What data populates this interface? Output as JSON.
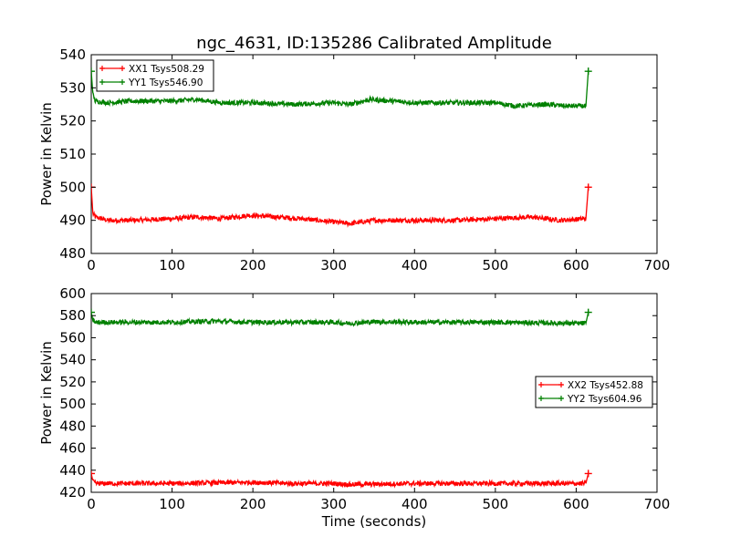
{
  "title": "ngc_4631, ID:135286 Calibrated Amplitude",
  "chart_data": [
    {
      "type": "line",
      "ylabel": "Power in Kelvin",
      "xlabel": "",
      "xlim": [
        0,
        700
      ],
      "ylim": [
        480,
        540
      ],
      "xticks": [
        "0",
        "100",
        "200",
        "300",
        "400",
        "500",
        "600",
        "700"
      ],
      "yticks": [
        "480",
        "490",
        "500",
        "510",
        "520",
        "530",
        "540"
      ],
      "legend_position": "upper-left",
      "series": [
        {
          "name": "XX1 Tsys508.29",
          "color": "#ff0000",
          "x": [
            0,
            2,
            5,
            20,
            50,
            100,
            130,
            160,
            195,
            230,
            260,
            300,
            320,
            350,
            400,
            450,
            500,
            545,
            580,
            612,
            615
          ],
          "y": [
            500,
            492,
            491,
            490,
            490,
            490.5,
            491,
            490.5,
            491.5,
            491,
            490.5,
            489.5,
            489,
            490,
            490,
            490,
            490.5,
            491,
            490,
            490.5,
            500
          ]
        },
        {
          "name": "YY1 Tsys546.90",
          "color": "#008000",
          "x": [
            0,
            2,
            5,
            20,
            50,
            100,
            130,
            160,
            200,
            250,
            300,
            320,
            345,
            400,
            450,
            500,
            525,
            560,
            590,
            612,
            615
          ],
          "y": [
            535,
            528,
            526,
            525.5,
            526,
            526,
            526.5,
            525.5,
            525.5,
            525,
            525.5,
            525,
            526.5,
            525.5,
            525.5,
            525.5,
            524.5,
            525,
            524.5,
            524.5,
            535
          ]
        }
      ]
    },
    {
      "type": "line",
      "ylabel": "Power in Kelvin",
      "xlabel": "Time (seconds)",
      "xlim": [
        0,
        700
      ],
      "ylim": [
        420,
        600
      ],
      "xticks": [
        "0",
        "100",
        "200",
        "300",
        "400",
        "500",
        "600",
        "700"
      ],
      "yticks": [
        "420",
        "440",
        "460",
        "480",
        "500",
        "520",
        "540",
        "560",
        "580",
        "600"
      ],
      "legend_position": "center-right",
      "series": [
        {
          "name": "XX2 Tsys452.88",
          "color": "#ff0000",
          "x": [
            0,
            2,
            5,
            50,
            100,
            150,
            200,
            250,
            300,
            320,
            400,
            500,
            600,
            612,
            615
          ],
          "y": [
            437,
            430,
            428,
            428,
            428,
            428.5,
            429,
            428,
            428,
            427,
            428,
            428,
            428,
            428,
            437
          ]
        },
        {
          "name": "YY2 Tsys604.96",
          "color": "#008000",
          "x": [
            0,
            2,
            5,
            50,
            100,
            150,
            200,
            250,
            300,
            320,
            350,
            400,
            500,
            600,
            612,
            615
          ],
          "y": [
            583,
            576,
            574,
            574,
            574,
            575,
            574,
            574,
            574,
            573,
            574.5,
            574,
            574,
            573,
            573,
            583
          ]
        }
      ]
    }
  ]
}
